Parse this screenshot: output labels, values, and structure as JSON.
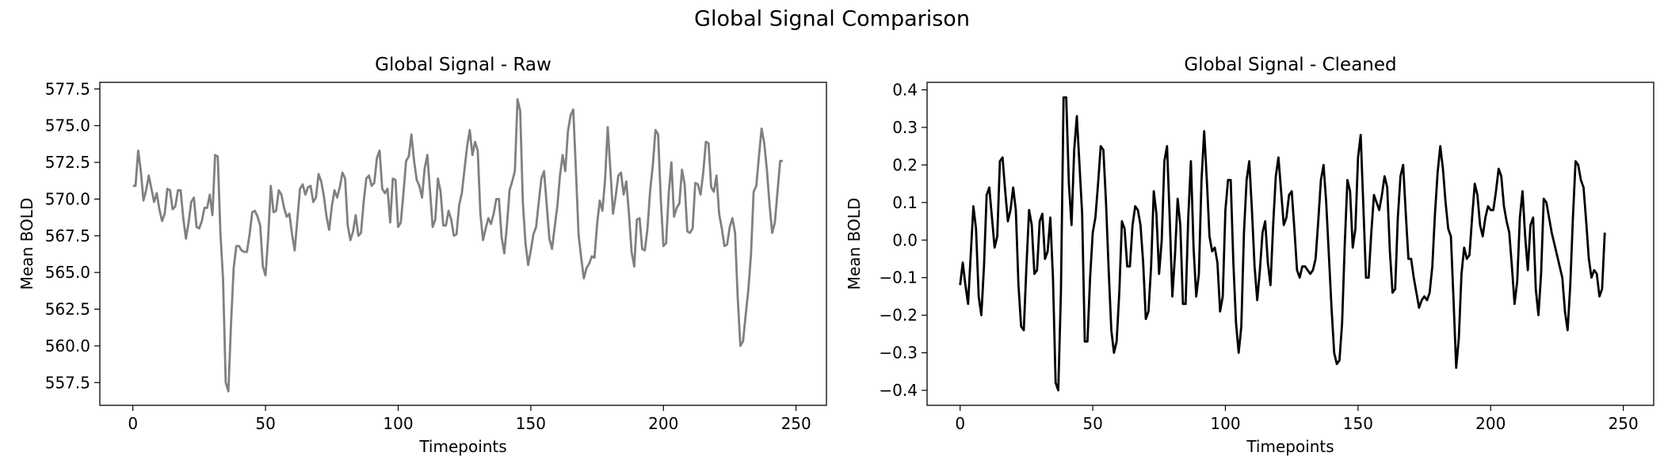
{
  "figure_title": "Global Signal Comparison",
  "chart_data": [
    {
      "type": "line",
      "title": "Global Signal - Raw",
      "xlabel": "Timepoints",
      "ylabel": "Mean BOLD",
      "xlim": [
        -12.45,
        261.45
      ],
      "ylim": [
        555.95,
        577.95
      ],
      "xticks": [
        0,
        50,
        100,
        150,
        200,
        250
      ],
      "yticks": [
        557.5,
        560.0,
        562.5,
        565.0,
        567.5,
        570.0,
        572.5,
        575.0,
        577.5
      ],
      "ytick_decimals": 1,
      "grid": false,
      "color": "#808080",
      "series": [
        {
          "x_start": 0,
          "values": [
            570.9,
            570.9,
            573.3,
            571.9,
            569.9,
            570.6,
            571.6,
            570.7,
            569.8,
            570.4,
            569.3,
            568.5,
            569.0,
            570.7,
            570.6,
            569.3,
            569.5,
            570.6,
            570.6,
            568.7,
            567.3,
            568.4,
            569.8,
            570.1,
            568.1,
            568.0,
            568.5,
            569.4,
            569.4,
            570.3,
            568.9,
            573.0,
            572.9,
            567.7,
            564.5,
            557.5,
            556.9,
            561.5,
            565.3,
            566.8,
            566.8,
            566.5,
            566.4,
            566.4,
            567.6,
            569.1,
            569.2,
            568.8,
            568.2,
            565.4,
            564.8,
            567.4,
            570.9,
            569.1,
            569.2,
            570.6,
            570.3,
            569.4,
            568.8,
            569.0,
            567.6,
            566.5,
            568.6,
            570.7,
            571.0,
            570.3,
            570.8,
            570.9,
            569.8,
            570.1,
            571.7,
            571.2,
            570.2,
            568.8,
            567.9,
            569.5,
            570.6,
            570.1,
            570.8,
            571.8,
            571.4,
            568.2,
            567.2,
            567.8,
            568.9,
            567.5,
            567.7,
            569.8,
            571.4,
            571.6,
            570.9,
            571.1,
            572.8,
            573.3,
            570.7,
            570.4,
            570.7,
            568.4,
            571.4,
            571.3,
            568.1,
            568.4,
            570.4,
            572.6,
            572.9,
            574.4,
            572.6,
            571.3,
            570.9,
            570.1,
            572.1,
            573.0,
            570.6,
            568.1,
            568.6,
            571.4,
            570.5,
            568.2,
            568.2,
            569.2,
            568.6,
            567.5,
            567.6,
            569.6,
            570.4,
            572.0,
            573.6,
            574.7,
            573.0,
            573.9,
            573.3,
            569.0,
            567.2,
            568.0,
            568.7,
            568.3,
            569.0,
            570.0,
            570.0,
            567.4,
            566.3,
            568.2,
            570.6,
            571.2,
            571.9,
            576.8,
            576.0,
            569.8,
            567.0,
            565.5,
            566.5,
            567.6,
            568.1,
            569.8,
            571.4,
            571.9,
            569.6,
            567.3,
            566.6,
            568.1,
            569.5,
            571.6,
            573.0,
            571.9,
            574.6,
            575.7,
            576.1,
            572.0,
            567.6,
            566.0,
            564.6,
            565.3,
            565.6,
            566.1,
            566.0,
            568.3,
            569.9,
            569.2,
            571.3,
            574.9,
            572.0,
            569.0,
            570.2,
            571.6,
            571.8,
            570.3,
            571.2,
            569.0,
            566.4,
            565.4,
            568.6,
            568.7,
            566.6,
            566.5,
            568.0,
            570.6,
            572.3,
            574.7,
            574.4,
            570.0,
            566.8,
            567.0,
            570.4,
            572.5,
            568.8,
            569.4,
            569.7,
            572.0,
            571.0,
            567.8,
            567.7,
            568.0,
            571.1,
            571.0,
            570.3,
            571.8,
            573.9,
            573.8,
            570.8,
            570.5,
            571.6,
            569.0,
            568.0,
            566.8,
            566.9,
            568.1,
            568.7,
            567.7,
            563.3,
            560.0,
            560.3,
            562.1,
            563.8,
            566.2,
            570.5,
            570.9,
            572.9,
            574.8,
            573.8,
            572.0,
            569.6,
            567.7,
            568.4,
            570.5,
            572.6,
            572.6
          ]
        }
      ]
    },
    {
      "type": "line",
      "title": "Global Signal - Cleaned",
      "xlabel": "Timepoints",
      "ylabel": "Mean BOLD",
      "xlim": [
        -12.45,
        261.45
      ],
      "ylim": [
        -0.44,
        0.42
      ],
      "xticks": [
        0,
        50,
        100,
        150,
        200,
        250
      ],
      "yticks": [
        -0.4,
        -0.3,
        -0.2,
        -0.1,
        0.0,
        0.1,
        0.2,
        0.3,
        0.4
      ],
      "ytick_decimals": 1,
      "grid": false,
      "color": "#000000",
      "series": [
        {
          "x_start": 0,
          "values": [
            -0.12,
            -0.06,
            -0.12,
            -0.17,
            -0.04,
            0.09,
            0.03,
            -0.15,
            -0.2,
            -0.07,
            0.12,
            0.14,
            0.06,
            -0.02,
            0.01,
            0.21,
            0.22,
            0.13,
            0.05,
            0.08,
            0.14,
            0.08,
            -0.12,
            -0.23,
            -0.24,
            -0.07,
            0.08,
            0.04,
            -0.09,
            -0.08,
            0.05,
            0.07,
            -0.05,
            -0.03,
            0.06,
            -0.1,
            -0.38,
            -0.4,
            -0.14,
            0.38,
            0.38,
            0.15,
            0.04,
            0.24,
            0.33,
            0.2,
            0.07,
            -0.27,
            -0.27,
            -0.1,
            0.02,
            0.06,
            0.15,
            0.25,
            0.24,
            0.1,
            -0.08,
            -0.24,
            -0.3,
            -0.27,
            -0.14,
            0.05,
            0.03,
            -0.07,
            -0.07,
            0.04,
            0.09,
            0.08,
            0.04,
            -0.06,
            -0.21,
            -0.19,
            -0.07,
            0.13,
            0.07,
            -0.09,
            0.0,
            0.21,
            0.25,
            0.06,
            -0.15,
            -0.04,
            0.11,
            0.04,
            -0.17,
            -0.17,
            0.06,
            0.21,
            -0.02,
            -0.15,
            -0.09,
            0.16,
            0.29,
            0.16,
            0.01,
            -0.03,
            -0.02,
            -0.06,
            -0.19,
            -0.15,
            0.08,
            0.16,
            0.16,
            -0.06,
            -0.22,
            -0.3,
            -0.23,
            0.02,
            0.16,
            0.21,
            0.08,
            -0.07,
            -0.16,
            -0.08,
            0.02,
            0.05,
            -0.06,
            -0.12,
            0.04,
            0.17,
            0.22,
            0.13,
            0.04,
            0.06,
            0.12,
            0.13,
            0.03,
            -0.08,
            -0.1,
            -0.07,
            -0.07,
            -0.08,
            -0.09,
            -0.08,
            -0.05,
            0.05,
            0.16,
            0.2,
            0.1,
            -0.04,
            -0.18,
            -0.3,
            -0.33,
            -0.32,
            -0.22,
            -0.01,
            0.16,
            0.13,
            -0.02,
            0.03,
            0.22,
            0.28,
            0.09,
            -0.1,
            -0.1,
            0.02,
            0.12,
            0.1,
            0.08,
            0.12,
            0.17,
            0.14,
            -0.03,
            -0.14,
            -0.13,
            0.06,
            0.17,
            0.2,
            0.07,
            -0.05,
            -0.05,
            -0.1,
            -0.14,
            -0.18,
            -0.16,
            -0.15,
            -0.16,
            -0.14,
            -0.07,
            0.07,
            0.18,
            0.25,
            0.19,
            0.1,
            0.03,
            0.01,
            -0.16,
            -0.34,
            -0.26,
            -0.09,
            -0.02,
            -0.05,
            -0.04,
            0.06,
            0.15,
            0.12,
            0.04,
            0.01,
            0.06,
            0.09,
            0.08,
            0.08,
            0.13,
            0.19,
            0.17,
            0.09,
            0.05,
            0.02,
            -0.07,
            -0.17,
            -0.11,
            0.06,
            0.13,
            0.01,
            -0.08,
            0.04,
            0.06,
            -0.13,
            -0.2,
            -0.09,
            0.11,
            0.1,
            0.06,
            0.02,
            -0.01,
            -0.04,
            -0.07,
            -0.1,
            -0.19,
            -0.24,
            -0.12,
            0.06,
            0.21,
            0.2,
            0.16,
            0.14,
            0.05,
            -0.05,
            -0.1,
            -0.08,
            -0.09,
            -0.15,
            -0.13,
            0.02
          ]
        }
      ]
    }
  ]
}
